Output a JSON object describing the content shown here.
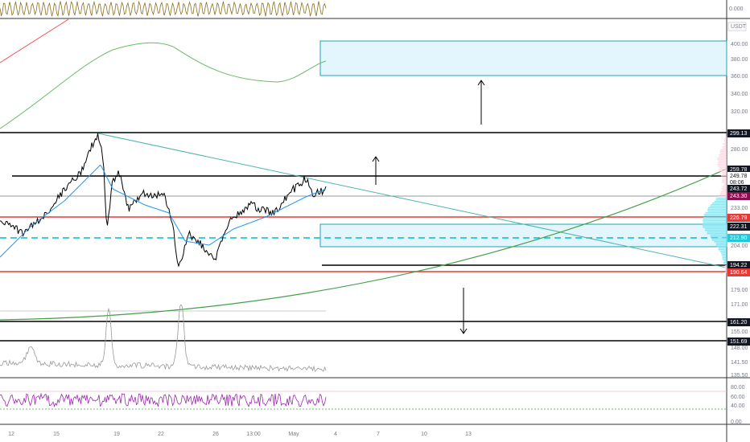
{
  "top_indicator": {
    "axis_label": "0.000"
  },
  "price_axis": {
    "currency": "USDT",
    "labels": [
      "400.00",
      "380.00",
      "360.00",
      "340.00",
      "320.00",
      "280.00",
      "233.00",
      "204.00",
      "179.00",
      "171.00",
      "155.00",
      "148.00",
      "141.50",
      "135.50"
    ],
    "tags": [
      "299.13",
      "259.78",
      "249.78",
      "243.72",
      "243.30",
      "226.79",
      "222.31",
      "212.90",
      "194.22",
      "190.64",
      "161.20",
      "151.69"
    ],
    "countdown": "08:06"
  },
  "rsi_axis": {
    "labels": [
      "80.00",
      "60.00",
      "40.00",
      "0.00"
    ]
  },
  "time_axis": {
    "labels": [
      "12",
      "15",
      "19",
      "22",
      "26",
      "13:00",
      "May",
      "4",
      "7",
      "10",
      "13"
    ]
  }
}
